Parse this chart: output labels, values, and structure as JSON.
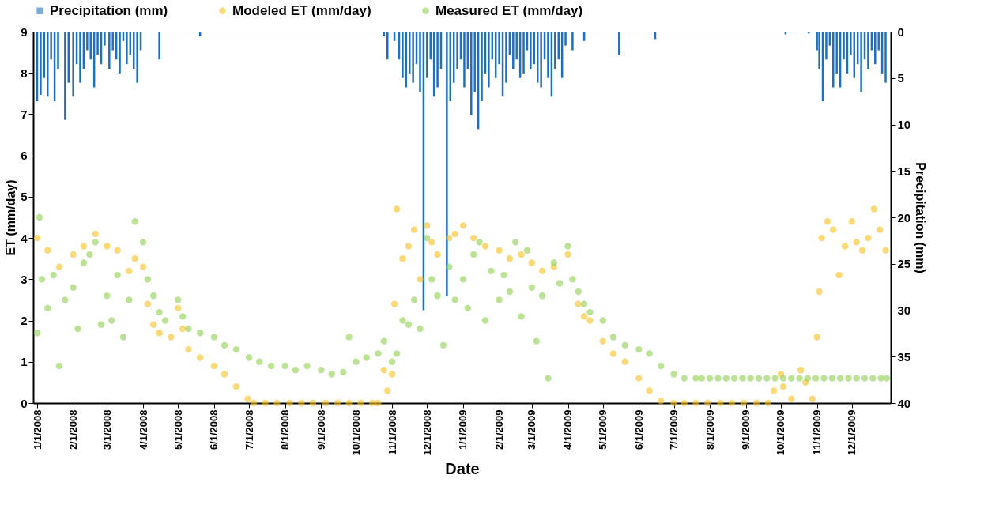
{
  "chart_data": {
    "type": "scatter",
    "xlabel": "Date",
    "ylabel": "ET (mm/day)",
    "y2label": "Precipitation (mm)",
    "xlim": [
      "2008-01-01",
      "2009-12-31"
    ],
    "xticks": [
      {
        "value": "2008-01-01",
        "label": "1/1/2008"
      },
      {
        "value": "2008-02-01",
        "label": "2/1/2008"
      },
      {
        "value": "2008-03-01",
        "label": "3/1/2008"
      },
      {
        "value": "2008-04-01",
        "label": "4/1/2008"
      },
      {
        "value": "2008-05-01",
        "label": "5/1/2008"
      },
      {
        "value": "2008-06-01",
        "label": "6/1/2008"
      },
      {
        "value": "2008-07-01",
        "label": "7/1/2008"
      },
      {
        "value": "2008-08-01",
        "label": "8/1/2008"
      },
      {
        "value": "2008-09-01",
        "label": "9/1/2008"
      },
      {
        "value": "2008-10-01",
        "label": "10/1/2008"
      },
      {
        "value": "2008-11-01",
        "label": "11/1/2008"
      },
      {
        "value": "2008-12-01",
        "label": "12/1/2008"
      },
      {
        "value": "2009-01-01",
        "label": "1/1/2009"
      },
      {
        "value": "2009-02-01",
        "label": "2/1/2009"
      },
      {
        "value": "2009-03-01",
        "label": "3/1/2009"
      },
      {
        "value": "2009-04-01",
        "label": "4/1/2009"
      },
      {
        "value": "2009-05-01",
        "label": "5/1/2009"
      },
      {
        "value": "2009-06-01",
        "label": "6/1/2009"
      },
      {
        "value": "2009-07-01",
        "label": "7/1/2009"
      },
      {
        "value": "2009-08-01",
        "label": "8/1/2009"
      },
      {
        "value": "2009-09-01",
        "label": "9/1/2009"
      },
      {
        "value": "2009-10-01",
        "label": "10/1/2009"
      },
      {
        "value": "2009-11-01",
        "label": "11/1/2009"
      },
      {
        "value": "2009-12-01",
        "label": "12/1/2009"
      }
    ],
    "ylim": [
      0,
      9
    ],
    "yticks": [
      0,
      1,
      2,
      3,
      4,
      5,
      6,
      7,
      8,
      9
    ],
    "y2lim": [
      40,
      0
    ],
    "y2ticks": [
      0,
      5,
      10,
      15,
      20,
      25,
      30,
      35,
      40
    ],
    "grid": false,
    "legend": "top",
    "marker": "circle",
    "series": [
      {
        "name": "Precipitation (mm)",
        "type": "bar",
        "axis": "y2",
        "color": "#1f6fc0",
        "x": [
          "2008-01-01",
          "2008-01-04",
          "2008-01-07",
          "2008-01-10",
          "2008-01-13",
          "2008-01-16",
          "2008-01-19",
          "2008-01-25",
          "2008-01-28",
          "2008-02-01",
          "2008-02-04",
          "2008-02-07",
          "2008-02-10",
          "2008-02-13",
          "2008-02-16",
          "2008-02-19",
          "2008-02-22",
          "2008-02-25",
          "2008-02-28",
          "2008-03-03",
          "2008-03-06",
          "2008-03-09",
          "2008-03-12",
          "2008-03-15",
          "2008-03-18",
          "2008-03-21",
          "2008-03-24",
          "2008-03-27",
          "2008-03-30",
          "2008-04-15",
          "2008-05-20",
          "2008-10-25",
          "2008-10-28",
          "2008-11-03",
          "2008-11-07",
          "2008-11-10",
          "2008-11-13",
          "2008-11-16",
          "2008-11-19",
          "2008-11-22",
          "2008-11-25",
          "2008-11-28",
          "2008-12-01",
          "2008-12-04",
          "2008-12-07",
          "2008-12-10",
          "2008-12-13",
          "2008-12-18",
          "2008-12-21",
          "2008-12-24",
          "2008-12-27",
          "2008-12-30",
          "2009-01-02",
          "2009-01-05",
          "2009-01-08",
          "2009-01-11",
          "2009-01-14",
          "2009-01-17",
          "2009-01-20",
          "2009-01-23",
          "2009-01-26",
          "2009-01-29",
          "2009-02-01",
          "2009-02-04",
          "2009-02-07",
          "2009-02-10",
          "2009-02-13",
          "2009-02-16",
          "2009-02-19",
          "2009-02-22",
          "2009-02-25",
          "2009-02-28",
          "2009-03-03",
          "2009-03-06",
          "2009-03-09",
          "2009-03-12",
          "2009-03-15",
          "2009-03-18",
          "2009-03-21",
          "2009-03-24",
          "2009-03-27",
          "2009-03-30",
          "2009-04-05",
          "2009-04-15",
          "2009-05-15",
          "2009-06-15",
          "2009-10-05",
          "2009-10-25",
          "2009-11-01",
          "2009-11-03",
          "2009-11-06",
          "2009-11-09",
          "2009-11-12",
          "2009-11-15",
          "2009-11-18",
          "2009-11-21",
          "2009-11-24",
          "2009-11-27",
          "2009-11-30",
          "2009-12-03",
          "2009-12-06",
          "2009-12-09",
          "2009-12-12",
          "2009-12-15",
          "2009-12-18",
          "2009-12-21",
          "2009-12-24",
          "2009-12-27",
          "2009-12-30"
        ],
        "values": [
          7.5,
          6.8,
          5.0,
          7.0,
          3.0,
          7.5,
          4.0,
          9.5,
          5.5,
          7.0,
          3.5,
          5.5,
          4.0,
          2.0,
          3.0,
          6.0,
          2.5,
          3.5,
          1.5,
          4.0,
          2.0,
          3.0,
          4.5,
          1.0,
          3.5,
          2.5,
          4.0,
          5.5,
          2.0,
          3.0,
          0.5,
          0.5,
          3.0,
          1.0,
          3.0,
          5.0,
          6.0,
          4.5,
          5.5,
          3.5,
          6.5,
          30,
          5.0,
          3.0,
          7.0,
          6.0,
          4.0,
          28.5,
          7.5,
          5.5,
          4.0,
          3.0,
          6.0,
          4.0,
          9.0,
          6.5,
          10.5,
          7.5,
          4.5,
          6.0,
          3.0,
          5.0,
          3.5,
          7.0,
          5.5,
          2.5,
          4.0,
          3.0,
          5.0,
          4.5,
          2.0,
          4.0,
          3.5,
          5.5,
          6.0,
          3.0,
          5.0,
          7.0,
          4.0,
          3.0,
          5.0,
          1.5,
          2.0,
          1.0,
          2.5,
          0.8,
          0.3,
          0.2,
          2.0,
          4.0,
          7.5,
          3.0,
          1.5,
          6.0,
          4.5,
          6.0,
          3.0,
          4.5,
          2.5,
          5.0,
          3.5,
          6.5,
          3.0,
          4.0,
          2.0,
          3.5,
          2.0,
          4.5,
          5.5
        ]
      },
      {
        "name": "Modeled ET (mm/day)",
        "color": "#f7bf1e",
        "x": [
          "2008-01-01",
          "2008-01-10",
          "2008-01-20",
          "2008-02-01",
          "2008-02-10",
          "2008-02-20",
          "2008-03-01",
          "2008-03-10",
          "2008-03-20",
          "2008-03-25",
          "2008-04-01",
          "2008-04-05",
          "2008-04-10",
          "2008-04-15",
          "2008-04-25",
          "2008-05-01",
          "2008-05-05",
          "2008-05-10",
          "2008-05-20",
          "2008-06-01",
          "2008-06-10",
          "2008-06-20",
          "2008-06-30",
          "2008-07-05",
          "2008-07-15",
          "2008-07-25",
          "2008-08-05",
          "2008-08-15",
          "2008-08-25",
          "2008-09-05",
          "2008-09-15",
          "2008-09-25",
          "2008-10-05",
          "2008-10-15",
          "2008-10-20",
          "2008-10-25",
          "2008-10-28",
          "2008-11-01",
          "2008-11-03",
          "2008-11-05",
          "2008-11-10",
          "2008-11-15",
          "2008-11-20",
          "2008-11-25",
          "2008-12-01",
          "2008-12-05",
          "2008-12-10",
          "2008-12-20",
          "2008-12-25",
          "2009-01-01",
          "2009-01-10",
          "2009-01-20",
          "2009-02-01",
          "2009-02-10",
          "2009-02-20",
          "2009-03-01",
          "2009-03-10",
          "2009-03-20",
          "2009-04-01",
          "2009-04-10",
          "2009-04-15",
          "2009-04-20",
          "2009-05-01",
          "2009-05-10",
          "2009-05-20",
          "2009-06-01",
          "2009-06-10",
          "2009-06-20",
          "2009-07-01",
          "2009-07-10",
          "2009-07-20",
          "2009-07-30",
          "2009-08-10",
          "2009-08-20",
          "2009-08-30",
          "2009-09-10",
          "2009-09-20",
          "2009-09-25",
          "2009-10-01",
          "2009-10-03",
          "2009-10-10",
          "2009-10-18",
          "2009-10-22",
          "2009-10-28",
          "2009-11-01",
          "2009-11-03",
          "2009-11-05",
          "2009-11-10",
          "2009-11-15",
          "2009-11-20",
          "2009-11-25",
          "2009-12-01",
          "2009-12-05",
          "2009-12-10",
          "2009-12-15",
          "2009-12-20",
          "2009-12-25",
          "2009-12-30"
        ],
        "values": [
          4.0,
          3.7,
          3.3,
          3.6,
          3.8,
          4.1,
          3.8,
          3.7,
          3.2,
          3.5,
          3.3,
          2.4,
          1.9,
          1.7,
          1.6,
          2.3,
          1.8,
          1.3,
          1.1,
          0.9,
          0.7,
          0.4,
          0.1,
          0,
          0,
          0,
          0,
          0,
          0,
          0,
          0,
          0,
          0,
          0,
          0,
          0.8,
          0.3,
          0.7,
          2.4,
          4.7,
          3.5,
          3.8,
          4.2,
          3.0,
          4.3,
          3.9,
          3.6,
          4.0,
          4.1,
          4.3,
          4.0,
          3.8,
          3.7,
          3.5,
          3.6,
          3.4,
          3.2,
          3.3,
          3.6,
          2.4,
          2.1,
          2.0,
          1.5,
          1.2,
          1.0,
          0.6,
          0.3,
          0.05,
          0,
          0,
          0,
          0,
          0,
          0,
          0,
          0,
          0,
          0.3,
          0.7,
          0.4,
          0.1,
          0.8,
          0.5,
          0.1,
          1.6,
          2.7,
          4.0,
          4.4,
          4.2,
          3.1,
          3.8,
          4.4,
          3.9,
          3.7,
          4.0,
          4.7,
          4.2,
          3.7
        ]
      },
      {
        "name": "Measured ET (mm/day)",
        "color": "#8fcf4f",
        "x": [
          "2008-01-01",
          "2008-01-03",
          "2008-01-05",
          "2008-01-10",
          "2008-01-15",
          "2008-01-20",
          "2008-01-25",
          "2008-02-01",
          "2008-02-05",
          "2008-02-10",
          "2008-02-15",
          "2008-02-20",
          "2008-02-25",
          "2008-03-01",
          "2008-03-05",
          "2008-03-10",
          "2008-03-15",
          "2008-03-20",
          "2008-03-25",
          "2008-04-01",
          "2008-04-05",
          "2008-04-10",
          "2008-04-15",
          "2008-04-20",
          "2008-05-01",
          "2008-05-05",
          "2008-05-10",
          "2008-05-20",
          "2008-06-01",
          "2008-06-10",
          "2008-06-20",
          "2008-07-01",
          "2008-07-10",
          "2008-07-20",
          "2008-08-01",
          "2008-08-10",
          "2008-08-20",
          "2008-09-01",
          "2008-09-10",
          "2008-09-20",
          "2008-09-25",
          "2008-10-01",
          "2008-10-10",
          "2008-10-20",
          "2008-10-25",
          "2008-11-01",
          "2008-11-05",
          "2008-11-10",
          "2008-11-15",
          "2008-11-20",
          "2008-11-25",
          "2008-12-01",
          "2008-12-05",
          "2008-12-10",
          "2008-12-15",
          "2008-12-20",
          "2008-12-25",
          "2009-01-01",
          "2009-01-05",
          "2009-01-10",
          "2009-01-15",
          "2009-01-20",
          "2009-01-25",
          "2009-02-01",
          "2009-02-05",
          "2009-02-10",
          "2009-02-15",
          "2009-02-20",
          "2009-02-25",
          "2009-03-01",
          "2009-03-05",
          "2009-03-10",
          "2009-03-15",
          "2009-03-20",
          "2009-03-25",
          "2009-04-01",
          "2009-04-05",
          "2009-04-10",
          "2009-04-15",
          "2009-04-20",
          "2009-05-01",
          "2009-05-10",
          "2009-05-20",
          "2009-06-01",
          "2009-06-10",
          "2009-06-20",
          "2009-07-01",
          "2009-07-10",
          "2009-07-20",
          "2009-07-25",
          "2009-08-01",
          "2009-08-08",
          "2009-08-15",
          "2009-08-22",
          "2009-08-29",
          "2009-09-05",
          "2009-09-12",
          "2009-09-19",
          "2009-09-26",
          "2009-10-03",
          "2009-10-10",
          "2009-10-17",
          "2009-10-24",
          "2009-10-31",
          "2009-11-07",
          "2009-11-14",
          "2009-11-21",
          "2009-11-28",
          "2009-12-05",
          "2009-12-12",
          "2009-12-19",
          "2009-12-26",
          "2009-12-31"
        ],
        "values": [
          1.7,
          4.5,
          3.0,
          2.3,
          3.1,
          0.9,
          2.5,
          2.8,
          1.8,
          3.4,
          3.6,
          3.9,
          1.9,
          2.6,
          2.0,
          3.1,
          1.6,
          2.5,
          4.4,
          3.9,
          3.0,
          2.6,
          2.2,
          2.0,
          2.5,
          2.1,
          1.8,
          1.7,
          1.6,
          1.4,
          1.3,
          1.1,
          1.0,
          0.9,
          0.9,
          0.8,
          0.9,
          0.8,
          0.7,
          0.75,
          1.6,
          1.0,
          1.1,
          1.2,
          1.5,
          1.0,
          1.2,
          2.0,
          1.9,
          2.5,
          1.8,
          4.0,
          3.0,
          2.6,
          1.4,
          3.3,
          2.5,
          3.0,
          2.3,
          3.6,
          3.9,
          2.0,
          3.2,
          2.5,
          3.1,
          2.7,
          3.9,
          2.1,
          3.7,
          2.8,
          1.5,
          2.6,
          0.6,
          3.4,
          2.9,
          3.8,
          3.0,
          2.7,
          2.4,
          2.2,
          2.0,
          1.6,
          1.4,
          1.3,
          1.2,
          0.9,
          0.7,
          0.6,
          0.6,
          0.6,
          0.6,
          0.6,
          0.6,
          0.6,
          0.6,
          0.6,
          0.6,
          0.6,
          0.6,
          0.6,
          0.6,
          0.6,
          0.6,
          0.6,
          0.6,
          0.6,
          0.6,
          0.6,
          0.6,
          0.6,
          0.6,
          0.6,
          0.6
        ]
      }
    ]
  }
}
